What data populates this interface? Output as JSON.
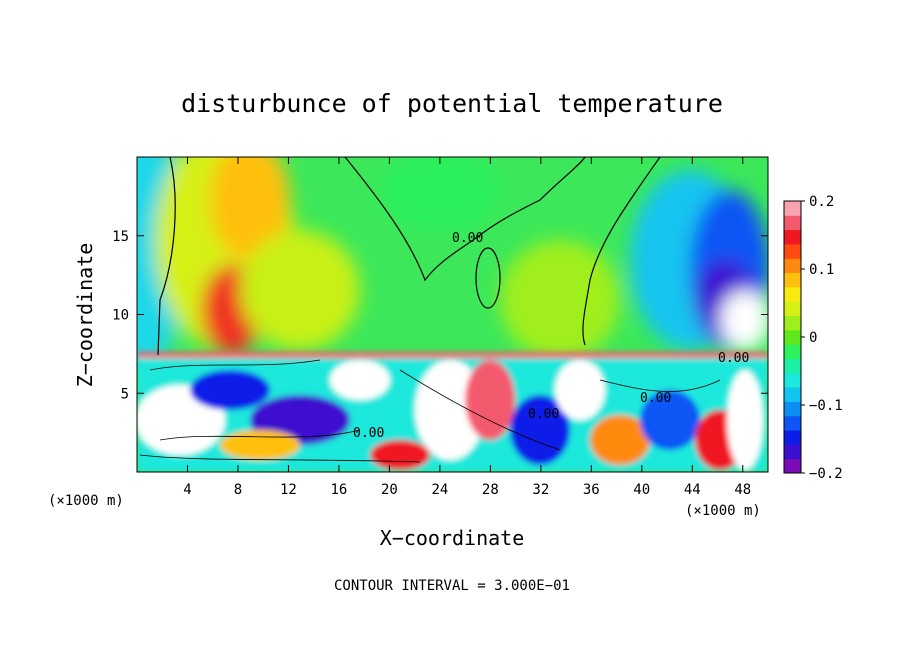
{
  "chart_data": {
    "type": "heatmap",
    "title": "disturbunce of potential temperature",
    "xlabel": "X−coordinate",
    "ylabel": "Z−coordinate",
    "x_unit": "(×1000 m)",
    "z_unit": "(×1000 m)",
    "xlim": [
      0,
      50
    ],
    "ylim": [
      0,
      20
    ],
    "x_ticks": [
      4,
      8,
      12,
      16,
      20,
      24,
      28,
      32,
      36,
      40,
      44,
      48
    ],
    "y_ticks": [
      5,
      10,
      15
    ],
    "colorbar": {
      "range": [
        -0.2,
        0.2
      ],
      "ticks": [
        0.2,
        0.1,
        0,
        -0.1,
        -0.2
      ],
      "tick_labels": [
        "0.2",
        "0.1",
        "0",
        "−0.1",
        "−0.2"
      ],
      "colors": [
        "#7a0bb5",
        "#3d0fd0",
        "#0c1de8",
        "#0f55f5",
        "#0c8ff5",
        "#12c4f0",
        "#1ce8dc",
        "#1cf0a4",
        "#2cf05c",
        "#5fe81c",
        "#a0ee1c",
        "#d6f015",
        "#f7ea10",
        "#ffc010",
        "#ff8a10",
        "#ff4a10",
        "#f01820",
        "#f45a6e",
        "#f8a4b0"
      ]
    },
    "contour_labels": [
      "0.00",
      "0.00",
      "0.00",
      "0.00",
      "0.00"
    ],
    "contour_interval_label": "CONTOUR INTERVAL = 3.000E−01"
  }
}
